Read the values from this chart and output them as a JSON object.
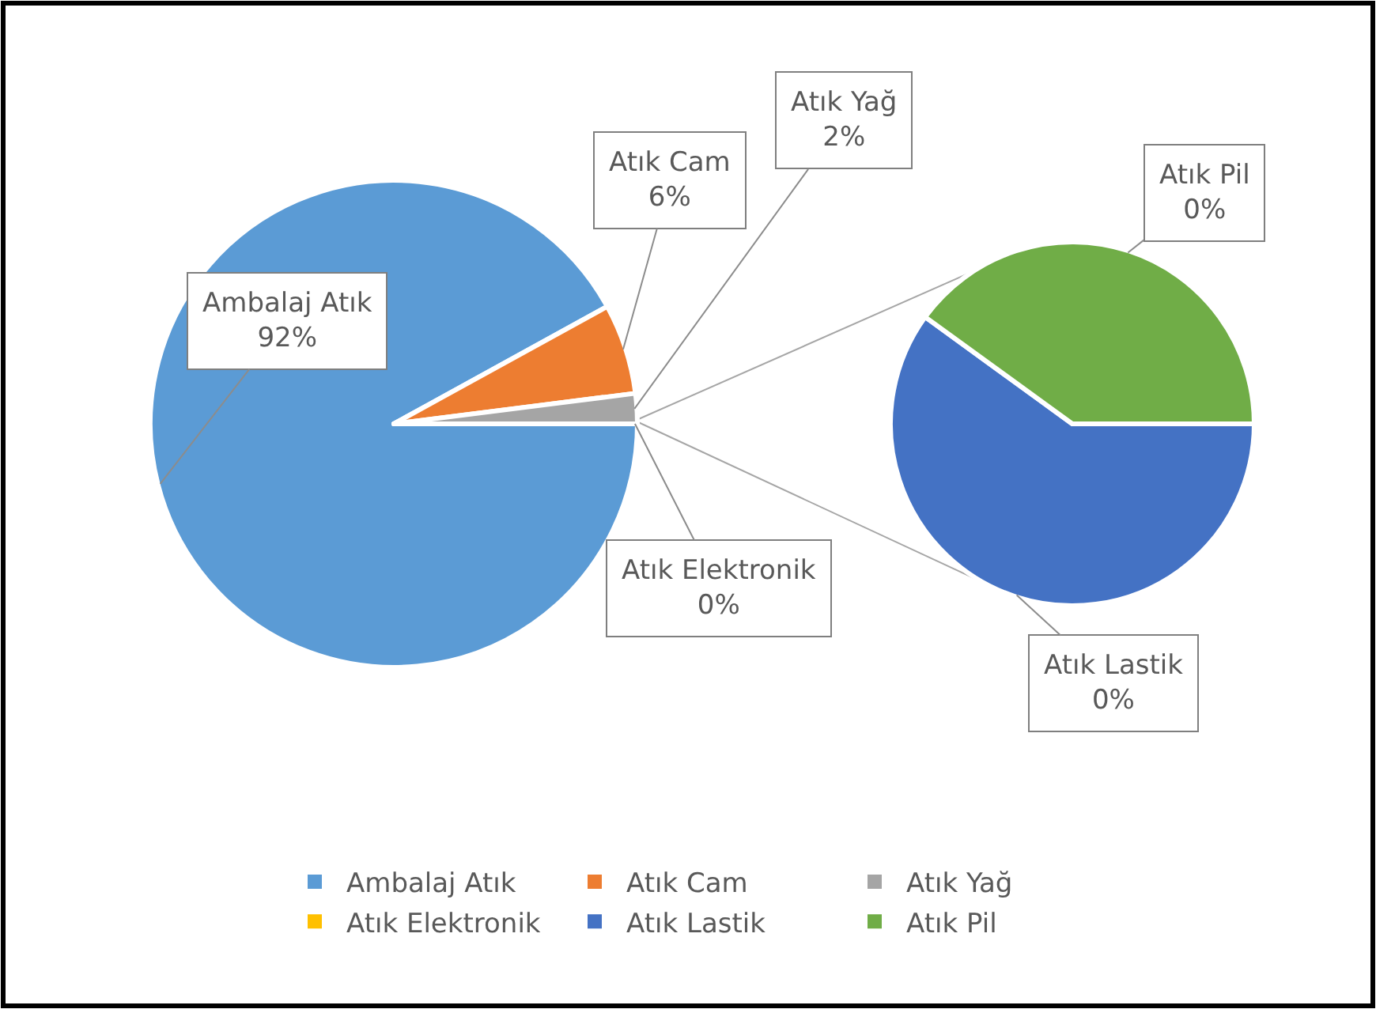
{
  "chart_data": [
    {
      "type": "pie",
      "categories": [
        "Ambalaj Atık",
        "Atık Cam",
        "Atık Yağ",
        "Atık Elektronik"
      ],
      "values": [
        92,
        6,
        2,
        0
      ],
      "colors": [
        "#5b9bd5",
        "#ed7d31",
        "#a5a5a5",
        "#ffc000"
      ],
      "value_labels": [
        "92%",
        "6%",
        "2%",
        "0%"
      ],
      "legend": "bottom"
    },
    {
      "type": "pie",
      "categories": [
        "Atık Lastik",
        "Atık Pil"
      ],
      "values": [
        0.3,
        0.2
      ],
      "colors": [
        "#4472c4",
        "#70ad47"
      ],
      "value_labels": [
        "0%",
        "0%"
      ],
      "legend": "bottom"
    }
  ]
}
